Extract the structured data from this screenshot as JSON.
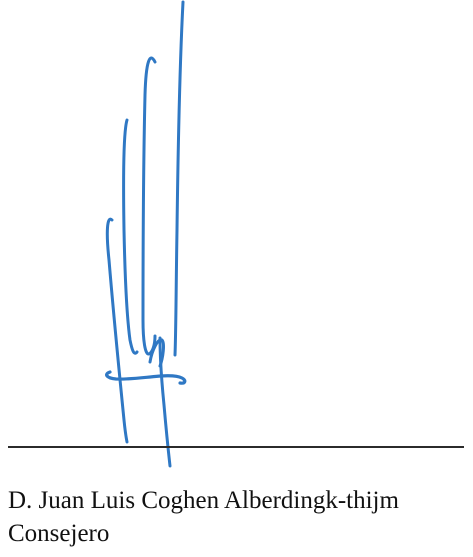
{
  "signature": {
    "ink_color": "#2f78c4",
    "line_color": "#2b2b2b"
  },
  "signer": {
    "name": "D. Juan Luis Coghen Alberdingk-thijm",
    "role": "Consejero"
  }
}
